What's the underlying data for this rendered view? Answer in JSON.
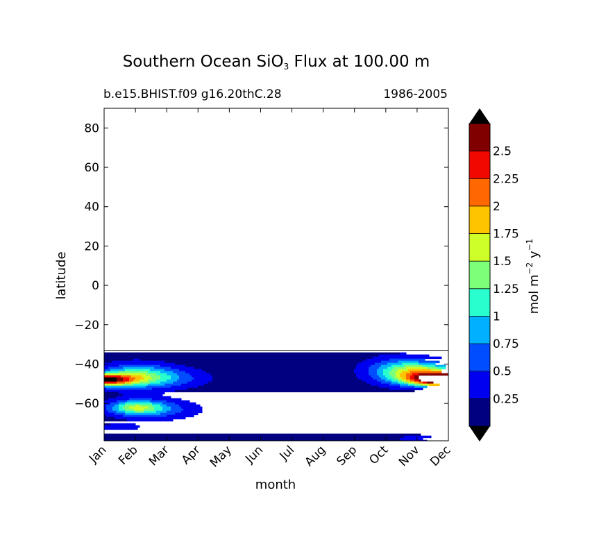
{
  "chart_data": {
    "type": "heatmap",
    "title_main": "Southern Ocean SiO",
    "title_sub": "3",
    "title_rest": " Flux at 100.00 m",
    "subtitle_left": "b.e15.BHIST.f09 g16.20thC.28",
    "subtitle_right": "1986-2005",
    "xlabel": "month",
    "ylabel": "latitude",
    "x_categories": [
      "Jan",
      "Feb",
      "Mar",
      "Apr",
      "May",
      "Jun",
      "Jul",
      "Aug",
      "Sep",
      "Oct",
      "Nov",
      "Dec"
    ],
    "yticks": [
      80,
      60,
      40,
      20,
      0,
      -20,
      -40,
      -60
    ],
    "ytick_labels": [
      "80",
      "60",
      "40",
      "20",
      "0",
      "−20",
      "−40",
      "−60"
    ],
    "ylim": [
      -79,
      90
    ],
    "data_lat_range": [
      -79,
      -33
    ],
    "colorbar": {
      "label_main": "mol m",
      "label_exp1": "−2",
      "label_y": " y",
      "label_exp2": "−1",
      "levels": [
        0,
        0.25,
        0.5,
        0.75,
        1,
        1.25,
        1.5,
        1.75,
        2,
        2.25,
        2.5,
        2.75
      ],
      "tick_labels": [
        "0.25",
        "0.5",
        "0.75",
        "1",
        "1.25",
        "1.5",
        "1.75",
        "2",
        "2.25",
        "2.5"
      ],
      "colors": [
        "#000080",
        "#0000f1",
        "#004dff",
        "#00b1ff",
        "#29ffce",
        "#7dff7a",
        "#ceff29",
        "#ffc400",
        "#ff6800",
        "#f10800",
        "#800000"
      ],
      "under_color": "#000000",
      "over_color": "#000000"
    },
    "grid": false,
    "background_value": 0.1,
    "features": [
      {
        "month": 0.0,
        "lat": -48,
        "peak": 2.3,
        "sx": 0.9,
        "sy": 3.0
      },
      {
        "month": 1.0,
        "lat": -46,
        "peak": 0.9,
        "sx": 1.1,
        "sy": 6.0
      },
      {
        "month": 1.8,
        "lat": -47,
        "peak": 0.6,
        "sx": 1.4,
        "sy": 5.0
      },
      {
        "month": 1.0,
        "lat": -62,
        "peak": 1.05,
        "sx": 0.8,
        "sy": 3.5
      },
      {
        "month": 1.6,
        "lat": -63,
        "peak": 0.6,
        "sx": 1.3,
        "sy": 5.0
      },
      {
        "month": 0.5,
        "lat": -72,
        "peak": 0.3,
        "sx": 0.7,
        "sy": 1.8
      },
      {
        "month": 11.0,
        "lat": -48,
        "peak": 2.9,
        "sx": 1.1,
        "sy": 3.2
      },
      {
        "month": 10.3,
        "lat": -45,
        "peak": 1.3,
        "sx": 1.2,
        "sy": 5.0
      },
      {
        "month": 9.5,
        "lat": -43,
        "peak": 0.75,
        "sx": 1.1,
        "sy": 6.5
      },
      {
        "month": 11.0,
        "lat": -78,
        "peak": 0.6,
        "sx": 1.3,
        "sy": 2.2
      }
    ]
  }
}
